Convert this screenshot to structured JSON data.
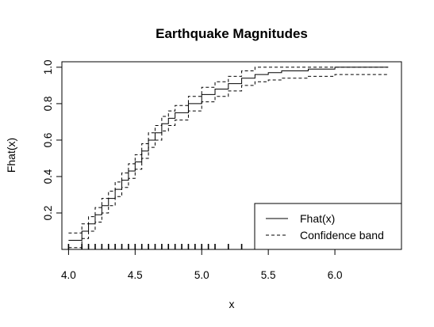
{
  "chart_data": {
    "type": "line",
    "title": "Earthquake Magnitudes",
    "xlabel": "x",
    "ylabel": "Fhat(x)",
    "xlim": [
      3.95,
      6.5
    ],
    "ylim": [
      0.0,
      1.03
    ],
    "xticks": [
      "4.0",
      "4.5",
      "5.0",
      "5.5",
      "6.0"
    ],
    "yticks": [
      "0.2",
      "0.4",
      "0.6",
      "0.8",
      "1.0"
    ],
    "grid": false,
    "legend_position": "bottom-right",
    "series": [
      {
        "name": "Fhat(x)",
        "style": "solid",
        "x": [
          4.0,
          4.1,
          4.15,
          4.2,
          4.25,
          4.3,
          4.35,
          4.4,
          4.45,
          4.5,
          4.55,
          4.6,
          4.65,
          4.7,
          4.75,
          4.8,
          4.9,
          5.0,
          5.1,
          5.2,
          5.3,
          5.4,
          5.5,
          5.6,
          5.8,
          6.0,
          6.4
        ],
        "y": [
          0.05,
          0.1,
          0.14,
          0.19,
          0.24,
          0.28,
          0.33,
          0.38,
          0.43,
          0.48,
          0.54,
          0.6,
          0.64,
          0.69,
          0.72,
          0.75,
          0.8,
          0.85,
          0.88,
          0.91,
          0.94,
          0.96,
          0.97,
          0.98,
          0.99,
          1.0,
          1.0
        ]
      },
      {
        "name": "Confidence band",
        "style": "dashed",
        "x": [
          4.0,
          4.1,
          4.15,
          4.2,
          4.25,
          4.3,
          4.35,
          4.4,
          4.45,
          4.5,
          4.55,
          4.6,
          4.65,
          4.7,
          4.75,
          4.8,
          4.9,
          5.0,
          5.1,
          5.2,
          5.3,
          5.4,
          5.5,
          5.6,
          5.8,
          6.0,
          6.4
        ],
        "y": [
          0.09,
          0.14,
          0.18,
          0.23,
          0.28,
          0.32,
          0.37,
          0.42,
          0.47,
          0.52,
          0.58,
          0.64,
          0.68,
          0.73,
          0.76,
          0.79,
          0.84,
          0.89,
          0.92,
          0.95,
          0.98,
          1.0,
          1.0,
          1.0,
          1.0,
          1.0,
          1.0
        ]
      },
      {
        "name": "Confidence band (lower)",
        "style": "dashed",
        "x": [
          4.0,
          4.1,
          4.15,
          4.2,
          4.25,
          4.3,
          4.35,
          4.4,
          4.45,
          4.5,
          4.55,
          4.6,
          4.65,
          4.7,
          4.75,
          4.8,
          4.9,
          5.0,
          5.1,
          5.2,
          5.3,
          5.4,
          5.5,
          5.6,
          5.8,
          6.0,
          6.4
        ],
        "y": [
          0.01,
          0.06,
          0.1,
          0.15,
          0.2,
          0.24,
          0.29,
          0.34,
          0.39,
          0.44,
          0.5,
          0.56,
          0.6,
          0.65,
          0.68,
          0.71,
          0.76,
          0.81,
          0.84,
          0.87,
          0.9,
          0.92,
          0.93,
          0.94,
          0.95,
          0.96,
          0.96
        ]
      }
    ],
    "rug": [
      4.0,
      4.1,
      4.15,
      4.2,
      4.25,
      4.3,
      4.35,
      4.4,
      4.45,
      4.5,
      4.55,
      4.6,
      4.65,
      4.7,
      4.75,
      4.8,
      4.85,
      4.9,
      4.95,
      5.0,
      5.05,
      5.1,
      5.2,
      5.3,
      5.4,
      5.5
    ]
  }
}
